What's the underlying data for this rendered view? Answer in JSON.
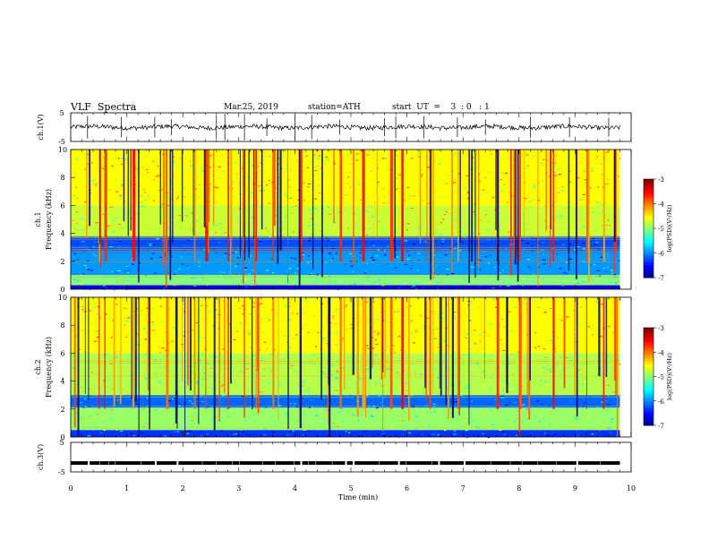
{
  "header": {
    "title": "VLF  Spectra",
    "date": "Mar.25, 2019",
    "station": "station=ATH",
    "start": "start  UT  =    3  : 0   : 1"
  },
  "chart_data": [
    {
      "type": "line",
      "name": "ch1-waveform",
      "ylabel": "ch.1(V)",
      "ylim": [
        -5,
        5
      ],
      "yticks": [
        "5",
        "-5"
      ],
      "xlim": [
        0,
        10
      ],
      "x_extent": [
        0,
        9.8
      ],
      "baseline": 0,
      "spike_minutes": [
        0.3,
        0.9,
        1.5,
        1.8,
        2.6,
        2.75,
        3.1,
        3.5,
        4.0,
        4.3,
        4.8,
        5.6,
        5.8,
        6.3,
        6.9,
        7.4,
        8.2,
        8.9,
        9.6
      ]
    },
    {
      "type": "heatmap",
      "name": "ch1-spectrogram",
      "ylabel_top": "ch.1",
      "ylabel": "Frequency  (kHz)",
      "yticks": [
        "10",
        "8",
        "6",
        "4",
        "2",
        "0"
      ],
      "ylim": [
        0,
        10
      ],
      "xlim": [
        0,
        10
      ],
      "x_extent": [
        0,
        9.8
      ],
      "colorbar": {
        "label": "log(PSD)(V²/Hz)",
        "ticks": [
          "-3",
          "-4",
          "-5",
          "-6",
          "-7"
        ],
        "range": [
          -7,
          -3
        ]
      },
      "bands": [
        {
          "f0": 0,
          "f1": 0.3,
          "level": -6.5
        },
        {
          "f0": 0.3,
          "f1": 1.0,
          "level": -5.0
        },
        {
          "f0": 1.0,
          "f1": 2.6,
          "level": -5.9
        },
        {
          "f0": 2.6,
          "f1": 3.8,
          "level": -6.2
        },
        {
          "f0": 3.8,
          "f1": 6.0,
          "level": -4.7
        },
        {
          "f0": 6.0,
          "f1": 10.0,
          "level": -4.5
        }
      ],
      "sferic_minutes": [
        0.5,
        0.6,
        1.1,
        1.7,
        2.2,
        2.4,
        2.8,
        3.3,
        3.6,
        4.1,
        4.8,
        5.2,
        5.7,
        5.9,
        6.4,
        6.9,
        7.6,
        8.0,
        8.6,
        9.2,
        9.5
      ]
    },
    {
      "type": "heatmap",
      "name": "ch2-spectrogram",
      "ylabel_top": "ch.2",
      "ylabel": "Frequency  (kHz)",
      "yticks": [
        "10",
        "8",
        "6",
        "4",
        "2",
        "0"
      ],
      "ylim": [
        0,
        10
      ],
      "xlim": [
        0,
        10
      ],
      "x_extent": [
        0,
        9.8
      ],
      "colorbar": {
        "label": "log(PSD)(V²/Hz)",
        "ticks": [
          "-3",
          "-4",
          "-5",
          "-6",
          "-7"
        ],
        "range": [
          -7,
          -3
        ]
      },
      "bands": [
        {
          "f0": 0,
          "f1": 0.5,
          "level": -6.3
        },
        {
          "f0": 0.5,
          "f1": 2.1,
          "level": -4.9
        },
        {
          "f0": 2.1,
          "f1": 3.0,
          "level": -6.1
        },
        {
          "f0": 3.0,
          "f1": 6.0,
          "level": -4.8
        },
        {
          "f0": 6.0,
          "f1": 10.0,
          "level": -4.5
        }
      ],
      "sferic_minutes": [
        0.5,
        0.6,
        1.1,
        1.7,
        2.2,
        2.4,
        2.8,
        3.3,
        3.6,
        4.1,
        4.8,
        5.2,
        5.7,
        5.9,
        6.4,
        6.9,
        7.6,
        8.0,
        8.6,
        9.2,
        9.5
      ]
    },
    {
      "type": "line",
      "name": "ch3-signal",
      "ylabel": "ch.3(V)",
      "ylim": [
        -5,
        5
      ],
      "yticks": [
        "5",
        "-5"
      ],
      "xlim": [
        0,
        10
      ],
      "x_extent": [
        0,
        9.8
      ],
      "level": -2,
      "xlabel": "Time  (min)",
      "xticks": [
        "0",
        "1",
        "2",
        "3",
        "4",
        "5",
        "6",
        "7",
        "8",
        "9",
        "10"
      ]
    }
  ]
}
